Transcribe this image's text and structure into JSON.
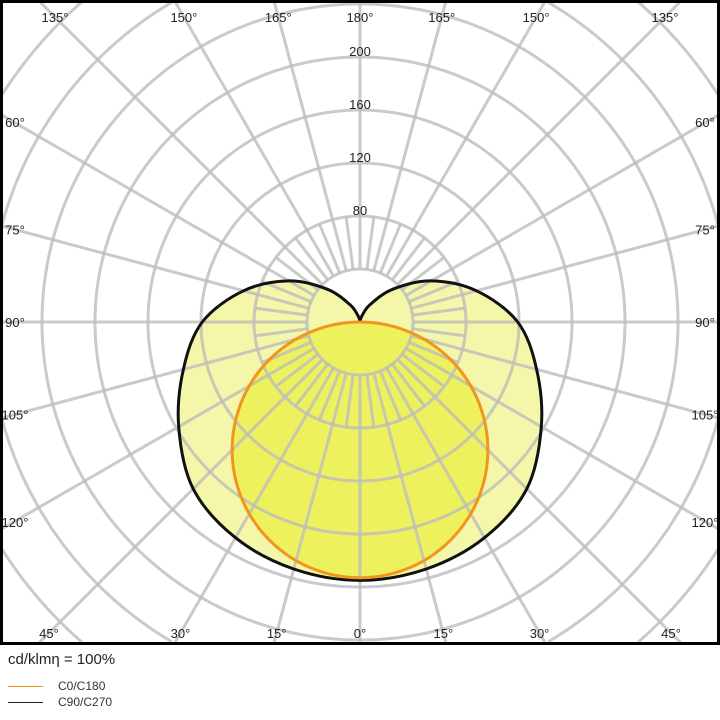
{
  "chart_data": {
    "type": "polar",
    "unit_label": "cd/klmη = 100%",
    "radial_ticks": [
      80,
      120,
      160,
      200
    ],
    "radial_circles": [
      40,
      80,
      120,
      160,
      200,
      240,
      280,
      320
    ],
    "angle_step": 15,
    "angle_labels": {
      "top": [
        "135°",
        "150°",
        "165°",
        "180°",
        "165°",
        "150°",
        "135°"
      ],
      "left": [
        "120°",
        "105°",
        "90°",
        "75°",
        "60°"
      ],
      "right": [
        "120°",
        "105°",
        "90°",
        "75°",
        "60°"
      ],
      "bottom": [
        "45°",
        "30°",
        "15°",
        "0°",
        "15°",
        "30°",
        "45°"
      ]
    },
    "gamma": [
      0,
      15,
      30,
      45,
      60,
      75,
      90,
      105,
      120,
      135,
      150,
      165,
      180
    ],
    "series": [
      {
        "name": "C0/C180",
        "color": "#F0961E",
        "fill": "#EBF050",
        "values": [
          193,
          186,
          167,
          136,
          97,
          50,
          0,
          0,
          0,
          0,
          0,
          0,
          0
        ]
      },
      {
        "name": "C90/C270",
        "color": "#111111",
        "fill": "#F2F59A",
        "values": [
          195,
          193,
          188,
          178,
          158,
          138,
          119,
          91,
          62,
          35,
          15,
          4,
          0
        ]
      }
    ],
    "grid": true
  }
}
